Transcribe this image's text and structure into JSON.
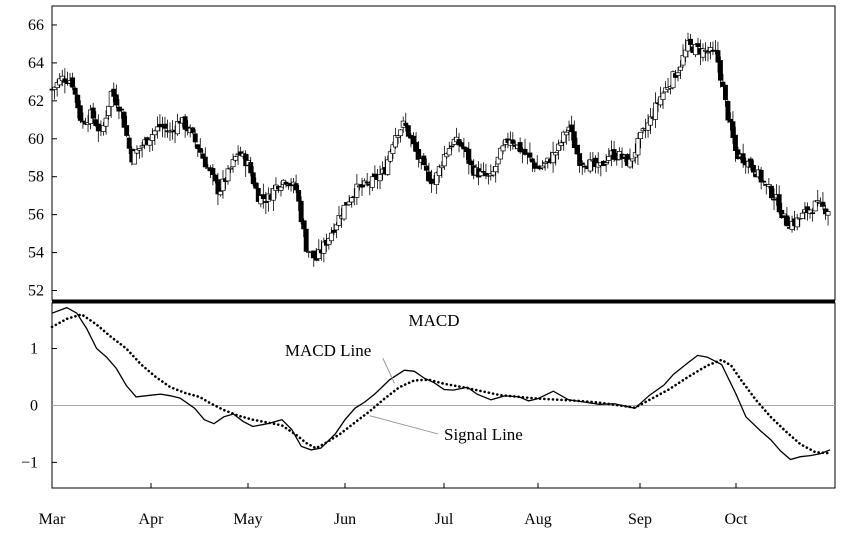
{
  "chart_data": {
    "type": "candlestick-with-indicator",
    "months": [
      "Mar",
      "Apr",
      "May",
      "Jun",
      "Jul",
      "Aug",
      "Sep",
      "Oct"
    ],
    "price_panel": {
      "ylim": [
        51.5,
        67
      ],
      "yticks": [
        "52",
        "54",
        "56",
        "58",
        "60",
        "62",
        "64",
        "66"
      ],
      "close_series": [
        [
          0,
          62.6
        ],
        [
          0.1,
          63.2
        ],
        [
          0.2,
          63.1
        ],
        [
          0.3,
          60.8
        ],
        [
          0.4,
          61.3
        ],
        [
          0.5,
          60.2
        ],
        [
          0.6,
          62.5
        ],
        [
          0.7,
          61.5
        ],
        [
          0.8,
          59.0
        ],
        [
          0.9,
          59.6
        ],
        [
          1.0,
          60.2
        ],
        [
          1.1,
          60.7
        ],
        [
          1.2,
          60.3
        ],
        [
          1.3,
          61.0
        ],
        [
          1.4,
          60.4
        ],
        [
          1.5,
          59.4
        ],
        [
          1.6,
          58.3
        ],
        [
          1.7,
          57.2
        ],
        [
          1.8,
          58.2
        ],
        [
          1.9,
          59.3
        ],
        [
          2.0,
          58.7
        ],
        [
          2.1,
          57.0
        ],
        [
          2.2,
          56.8
        ],
        [
          2.3,
          57.6
        ],
        [
          2.4,
          57.9
        ],
        [
          2.5,
          57.3
        ],
        [
          2.6,
          54.3
        ],
        [
          2.7,
          53.6
        ],
        [
          2.8,
          54.5
        ],
        [
          2.9,
          55.5
        ],
        [
          3.0,
          56.5
        ],
        [
          3.1,
          57.3
        ],
        [
          3.2,
          57.5
        ],
        [
          3.3,
          57.8
        ],
        [
          3.4,
          58.3
        ],
        [
          3.5,
          60.2
        ],
        [
          3.6,
          60.8
        ],
        [
          3.7,
          59.5
        ],
        [
          3.8,
          58.3
        ],
        [
          3.9,
          57.7
        ],
        [
          4.0,
          59.1
        ],
        [
          4.1,
          59.9
        ],
        [
          4.2,
          59.6
        ],
        [
          4.3,
          58.4
        ],
        [
          4.4,
          58.1
        ],
        [
          4.5,
          57.9
        ],
        [
          4.6,
          59.2
        ],
        [
          4.7,
          60.1
        ],
        [
          4.8,
          59.5
        ],
        [
          4.9,
          59.0
        ],
        [
          5.0,
          58.4
        ],
        [
          5.1,
          58.8
        ],
        [
          5.2,
          59.5
        ],
        [
          5.3,
          60.7
        ],
        [
          5.4,
          58.9
        ],
        [
          5.5,
          58.7
        ],
        [
          5.6,
          58.4
        ],
        [
          5.7,
          59.2
        ],
        [
          5.8,
          59.1
        ],
        [
          5.9,
          58.7
        ],
        [
          6.0,
          60.0
        ],
        [
          6.1,
          60.9
        ],
        [
          6.2,
          62.1
        ],
        [
          6.3,
          62.9
        ],
        [
          6.4,
          63.7
        ],
        [
          6.5,
          64.9
        ],
        [
          6.6,
          64.7
        ],
        [
          6.7,
          64.6
        ],
        [
          6.8,
          64.4
        ],
        [
          6.9,
          61.6
        ],
        [
          7.0,
          59.2
        ],
        [
          7.1,
          58.9
        ],
        [
          7.2,
          58.3
        ],
        [
          7.3,
          57.5
        ],
        [
          7.4,
          56.9
        ],
        [
          7.5,
          55.6
        ],
        [
          7.6,
          55.6
        ],
        [
          7.7,
          56.1
        ],
        [
          7.8,
          56.5
        ],
        [
          7.9,
          56.3
        ]
      ]
    },
    "macd_panel": {
      "title": "MACD",
      "ylim": [
        -1.45,
        1.8
      ],
      "yticks": [
        "1",
        "0",
        "−1"
      ],
      "series": [
        {
          "name": "MACD Line",
          "style": "solid",
          "points": [
            [
              0,
              1.62
            ],
            [
              0.15,
              1.72
            ],
            [
              0.25,
              1.62
            ],
            [
              0.35,
              1.35
            ],
            [
              0.45,
              1.0
            ],
            [
              0.55,
              0.85
            ],
            [
              0.65,
              0.65
            ],
            [
              0.75,
              0.35
            ],
            [
              0.85,
              0.15
            ],
            [
              1.0,
              0.18
            ],
            [
              1.1,
              0.2
            ],
            [
              1.2,
              0.17
            ],
            [
              1.3,
              0.13
            ],
            [
              1.45,
              -0.05
            ],
            [
              1.55,
              -0.25
            ],
            [
              1.65,
              -0.32
            ],
            [
              1.75,
              -0.2
            ],
            [
              1.85,
              -0.15
            ],
            [
              1.95,
              -0.28
            ],
            [
              2.05,
              -0.37
            ],
            [
              2.2,
              -0.32
            ],
            [
              2.35,
              -0.25
            ],
            [
              2.45,
              -0.42
            ],
            [
              2.55,
              -0.72
            ],
            [
              2.65,
              -0.78
            ],
            [
              2.75,
              -0.75
            ],
            [
              2.9,
              -0.5
            ],
            [
              3.0,
              -0.25
            ],
            [
              3.1,
              -0.05
            ],
            [
              3.2,
              0.06
            ],
            [
              3.3,
              0.2
            ],
            [
              3.45,
              0.45
            ],
            [
              3.6,
              0.62
            ],
            [
              3.7,
              0.6
            ],
            [
              3.8,
              0.48
            ],
            [
              3.9,
              0.4
            ],
            [
              4.0,
              0.28
            ],
            [
              4.1,
              0.27
            ],
            [
              4.25,
              0.32
            ],
            [
              4.35,
              0.2
            ],
            [
              4.5,
              0.1
            ],
            [
              4.65,
              0.17
            ],
            [
              4.8,
              0.15
            ],
            [
              4.9,
              0.08
            ],
            [
              5.0,
              0.12
            ],
            [
              5.15,
              0.25
            ],
            [
              5.3,
              0.1
            ],
            [
              5.45,
              0.06
            ],
            [
              5.6,
              0.02
            ],
            [
              5.75,
              0.03
            ],
            [
              5.95,
              -0.05
            ],
            [
              6.1,
              0.18
            ],
            [
              6.25,
              0.36
            ],
            [
              6.35,
              0.55
            ],
            [
              6.5,
              0.75
            ],
            [
              6.6,
              0.88
            ],
            [
              6.7,
              0.85
            ],
            [
              6.85,
              0.72
            ],
            [
              7.0,
              0.2
            ],
            [
              7.1,
              -0.2
            ],
            [
              7.25,
              -0.45
            ],
            [
              7.35,
              -0.6
            ],
            [
              7.45,
              -0.8
            ],
            [
              7.55,
              -0.95
            ],
            [
              7.65,
              -0.9
            ],
            [
              7.75,
              -0.88
            ],
            [
              7.85,
              -0.85
            ],
            [
              7.95,
              -0.78
            ]
          ]
        },
        {
          "name": "Signal Line",
          "style": "dotted",
          "points": [
            [
              0,
              1.38
            ],
            [
              0.15,
              1.52
            ],
            [
              0.3,
              1.6
            ],
            [
              0.45,
              1.42
            ],
            [
              0.6,
              1.2
            ],
            [
              0.75,
              1.0
            ],
            [
              0.9,
              0.72
            ],
            [
              1.05,
              0.5
            ],
            [
              1.2,
              0.32
            ],
            [
              1.35,
              0.22
            ],
            [
              1.5,
              0.15
            ],
            [
              1.6,
              0.05
            ],
            [
              1.75,
              -0.08
            ],
            [
              1.9,
              -0.18
            ],
            [
              2.05,
              -0.25
            ],
            [
              2.2,
              -0.3
            ],
            [
              2.35,
              -0.35
            ],
            [
              2.5,
              -0.52
            ],
            [
              2.6,
              -0.66
            ],
            [
              2.7,
              -0.75
            ],
            [
              2.8,
              -0.66
            ],
            [
              2.95,
              -0.5
            ],
            [
              3.1,
              -0.3
            ],
            [
              3.25,
              -0.1
            ],
            [
              3.4,
              0.12
            ],
            [
              3.55,
              0.32
            ],
            [
              3.7,
              0.44
            ],
            [
              3.85,
              0.45
            ],
            [
              4.0,
              0.38
            ],
            [
              4.2,
              0.32
            ],
            [
              4.4,
              0.25
            ],
            [
              4.6,
              0.18
            ],
            [
              4.8,
              0.15
            ],
            [
              5.0,
              0.12
            ],
            [
              5.2,
              0.1
            ],
            [
              5.4,
              0.08
            ],
            [
              5.6,
              0.05
            ],
            [
              5.8,
              0.0
            ],
            [
              5.95,
              -0.04
            ],
            [
              6.1,
              0.1
            ],
            [
              6.3,
              0.28
            ],
            [
              6.5,
              0.5
            ],
            [
              6.7,
              0.7
            ],
            [
              6.85,
              0.8
            ],
            [
              6.95,
              0.7
            ],
            [
              7.05,
              0.45
            ],
            [
              7.2,
              0.1
            ],
            [
              7.35,
              -0.2
            ],
            [
              7.5,
              -0.45
            ],
            [
              7.65,
              -0.68
            ],
            [
              7.8,
              -0.82
            ],
            [
              7.95,
              -0.84
            ]
          ]
        }
      ],
      "annotations": [
        {
          "text": "MACD Line",
          "x": 2.38,
          "y": 0.97,
          "target": [
            3.5,
            0.39
          ]
        },
        {
          "text": "Signal Line",
          "x": 4.0,
          "y": -0.5,
          "target": [
            3.25,
            -0.18
          ]
        }
      ]
    }
  }
}
